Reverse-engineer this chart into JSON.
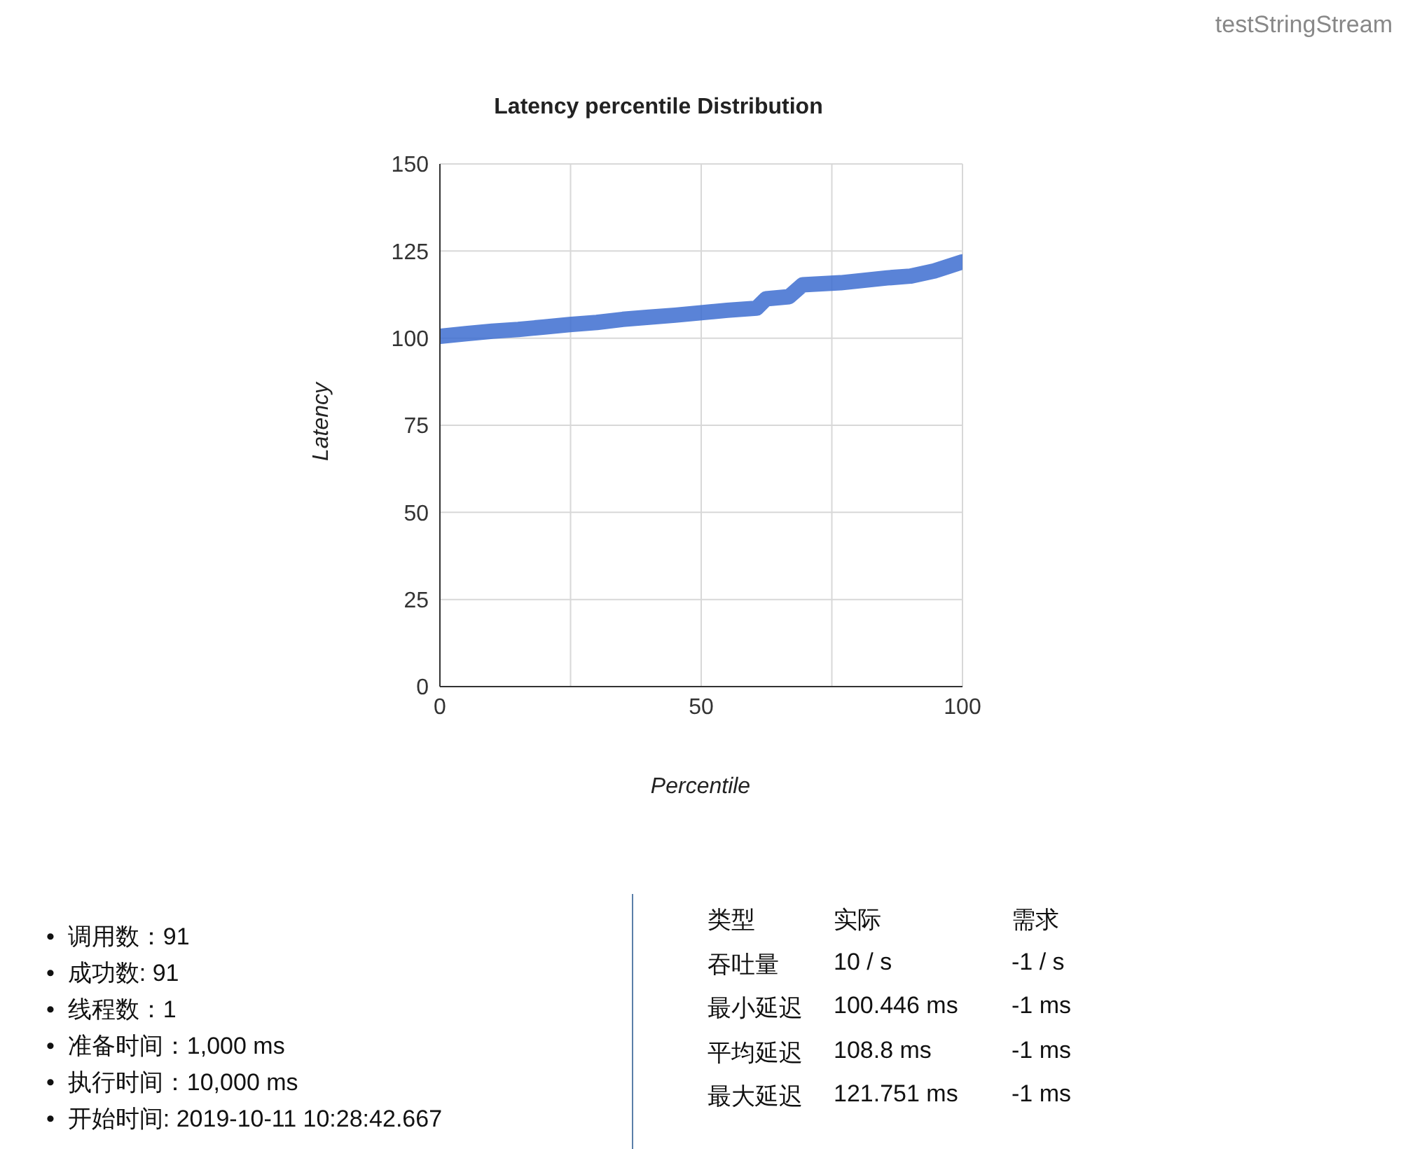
{
  "chart_data": {
    "type": "line",
    "title": "Latency percentile Distribution",
    "subtitle": "testStringStream",
    "xlabel": "Percentile",
    "ylabel": "Latency",
    "x": [
      0,
      5,
      10,
      15,
      20,
      24.8,
      30,
      35,
      40,
      45,
      50,
      55,
      60.6,
      62.4,
      66.8,
      69.4,
      76.7,
      85.6,
      90,
      94.6,
      97.3,
      100
    ],
    "series": [
      {
        "color": "#3d6dd0",
        "values": [
          100.5,
          101.3,
          102,
          102.5,
          103.2,
          103.9,
          104.5,
          105.4,
          106,
          106.6,
          107.3,
          108,
          108.6,
          111.3,
          111.9,
          115.3,
          115.9,
          117.3,
          117.8,
          119.3,
          120.6,
          121.9
        ]
      }
    ],
    "xlim": [
      0,
      100
    ],
    "xticks": [
      0,
      {
        "value": 25,
        "label": null
      },
      50,
      {
        "value": 75,
        "label": null
      },
      100
    ],
    "ylim": [
      0,
      150
    ],
    "yticks": [
      0,
      25,
      50,
      75,
      100,
      125,
      150
    ],
    "grid": true,
    "legend": false,
    "marker": "none",
    "line_style": "solid",
    "annotations": [
      "•  调用数：91",
      "•  成功数: 91",
      "•  线程数：1",
      "•  准备时间：1,000 ms",
      "•  执行时间：10,000 ms",
      "•  开始时间: 2019-10-11 10:28:42.667",
      "类型",
      "实际",
      "需求",
      "吞吐量",
      "10 / s",
      "-1 / s",
      "最小延迟",
      "100.446 ms",
      "-1 ms",
      "平均延迟",
      "108.8 ms",
      "-1 ms",
      "最大延迟",
      "121.751 ms",
      "-1 ms"
    ]
  }
}
